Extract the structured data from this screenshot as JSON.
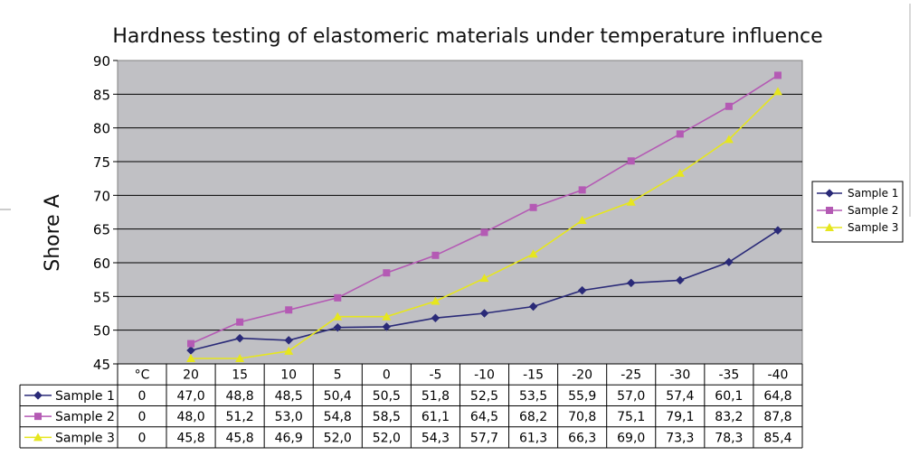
{
  "chart_data": {
    "type": "line",
    "title": "Hardness testing of elastomeric materials under temperature influence",
    "xlabel": "",
    "ylabel": "Shore A",
    "unit_header": "°C",
    "categories": [
      "20",
      "15",
      "10",
      "5",
      "0",
      "-5",
      "-10",
      "-15",
      "-20",
      "-25",
      "-30",
      "-35",
      "-40"
    ],
    "ylim": [
      45,
      90
    ],
    "yticks": [
      "90",
      "85",
      "80",
      "75",
      "70",
      "65",
      "60",
      "55",
      "50",
      "45"
    ],
    "grid": true,
    "legend_position": "right",
    "series": [
      {
        "name": "Sample 1",
        "color": "#2a2a78",
        "marker": "diamond",
        "unit_value": "0",
        "labels": [
          "47,0",
          "48,8",
          "48,5",
          "50,4",
          "50,5",
          "51,8",
          "52,5",
          "53,5",
          "55,9",
          "57,0",
          "57,4",
          "60,1",
          "64,8"
        ],
        "values": [
          47.0,
          48.8,
          48.5,
          50.4,
          50.5,
          51.8,
          52.5,
          53.5,
          55.9,
          57.0,
          57.4,
          60.1,
          64.8
        ]
      },
      {
        "name": "Sample 2",
        "color": "#b45ab4",
        "marker": "square",
        "unit_value": "0",
        "labels": [
          "48,0",
          "51,2",
          "53,0",
          "54,8",
          "58,5",
          "61,1",
          "64,5",
          "68,2",
          "70,8",
          "75,1",
          "79,1",
          "83,2",
          "87,8"
        ],
        "values": [
          48.0,
          51.2,
          53.0,
          54.8,
          58.5,
          61.1,
          64.5,
          68.2,
          70.8,
          75.1,
          79.1,
          83.2,
          87.8
        ]
      },
      {
        "name": "Sample 3",
        "color": "#e6e61e",
        "marker": "triangle",
        "unit_value": "0",
        "labels": [
          "45,8",
          "45,8",
          "46,9",
          "52,0",
          "52,0",
          "54,3",
          "57,7",
          "61,3",
          "66,3",
          "69,0",
          "73,3",
          "78,3",
          "85,4"
        ],
        "values": [
          45.8,
          45.8,
          46.9,
          52.0,
          52.0,
          54.3,
          57.7,
          61.3,
          66.3,
          69.0,
          73.3,
          78.3,
          85.4
        ]
      }
    ]
  }
}
